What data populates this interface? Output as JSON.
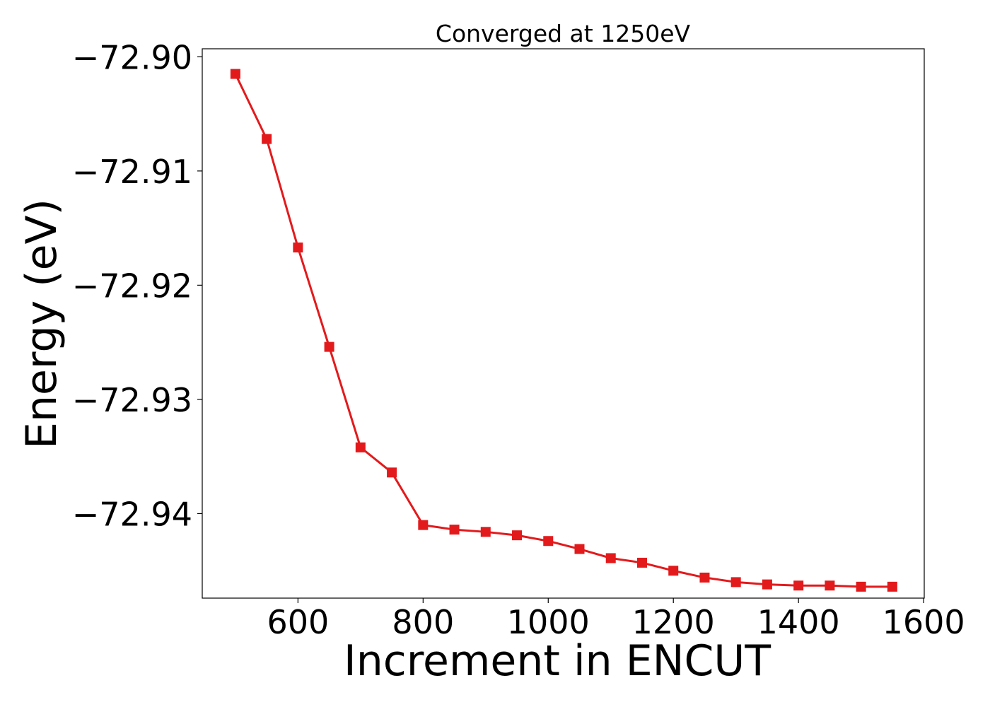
{
  "chart_data": {
    "type": "line",
    "title": "Converged at 1250eV",
    "xlabel": "Increment in ENCUT",
    "ylabel": "Energy (eV)",
    "x": [
      500,
      550,
      600,
      650,
      700,
      750,
      800,
      850,
      900,
      950,
      1000,
      1050,
      1100,
      1150,
      1200,
      1250,
      1300,
      1350,
      1400,
      1450,
      1500,
      1550
    ],
    "series": [
      {
        "values": [
          -72.9015,
          -72.9072,
          -72.9167,
          -72.9254,
          -72.9342,
          -72.9364,
          -72.941,
          -72.9414,
          -72.9416,
          -72.9419,
          -72.9424,
          -72.9431,
          -72.9439,
          -72.9443,
          -72.945,
          -72.9456,
          -72.946,
          -72.9462,
          -72.9463,
          -72.9463,
          -72.9464,
          -72.9464
        ],
        "color": "#e31a1c",
        "marker": "square"
      }
    ],
    "xlim": [
      447,
      1601
    ],
    "ylim": [
      -72.9474,
      -72.8993
    ],
    "xticks": [
      600,
      800,
      1000,
      1200,
      1400,
      1600
    ],
    "yticks": [
      -72.9,
      -72.91,
      -72.92,
      -72.93,
      -72.94
    ],
    "xtick_labels": [
      "600",
      "800",
      "1000",
      "1200",
      "1400",
      "1600"
    ],
    "ytick_labels": [
      "−72.90",
      "−72.91",
      "−72.92",
      "−72.93",
      "−72.94"
    ],
    "grid": false,
    "legend": false
  }
}
